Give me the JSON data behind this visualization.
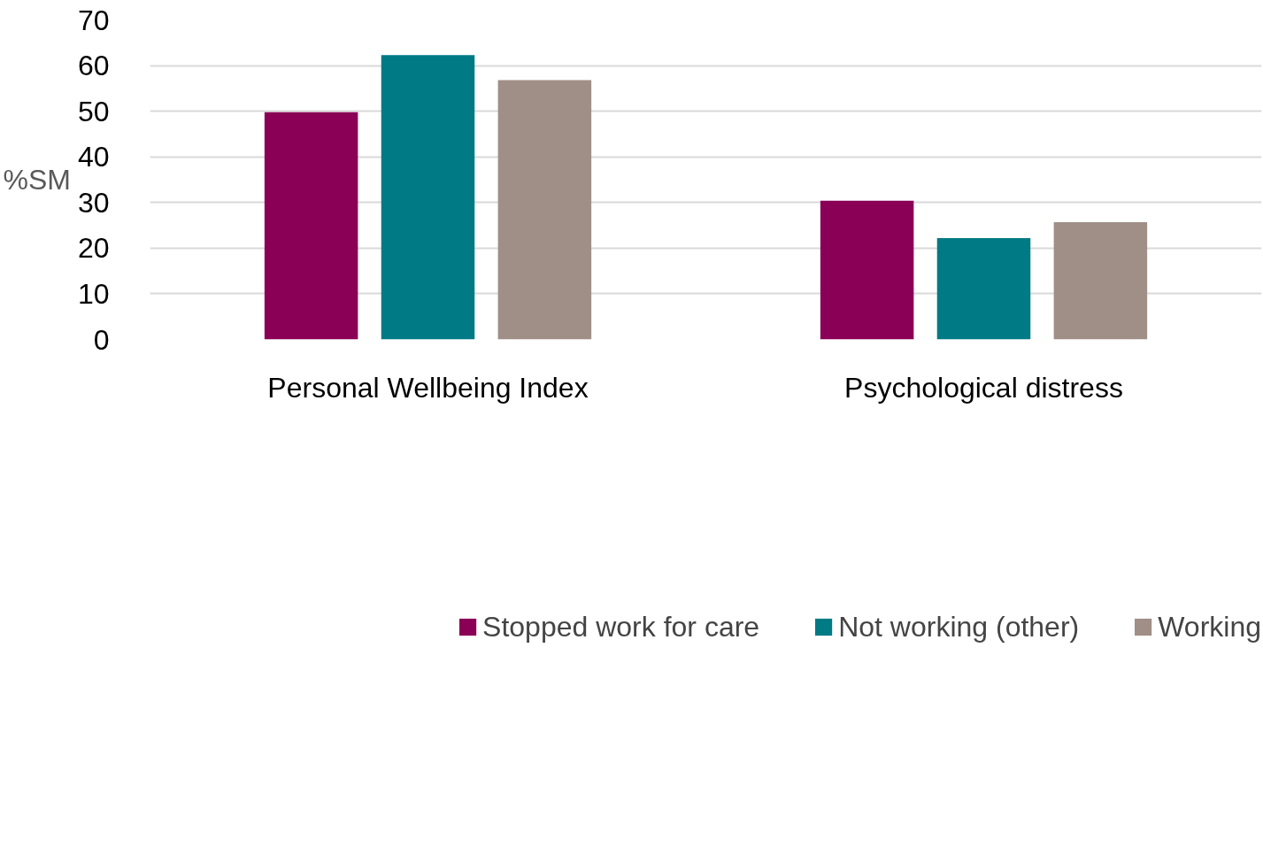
{
  "chart_data": {
    "type": "bar",
    "ylabel": "%SM",
    "categories": [
      "Personal Wellbeing Index",
      "Psychological distress"
    ],
    "series": [
      {
        "name": "Stopped work for care",
        "color": "#8b0057",
        "values": [
          49.8,
          30.4
        ]
      },
      {
        "name": "Not working (other)",
        "color": "#007a84",
        "values": [
          62.3,
          22.2
        ]
      },
      {
        "name": "Working",
        "color": "#a08f86",
        "values": [
          56.8,
          25.7
        ]
      }
    ],
    "ylim": [
      0,
      70
    ],
    "yticks": [
      0,
      10,
      20,
      30,
      40,
      50,
      60,
      70
    ],
    "grid": "y",
    "legend": "bottom"
  }
}
